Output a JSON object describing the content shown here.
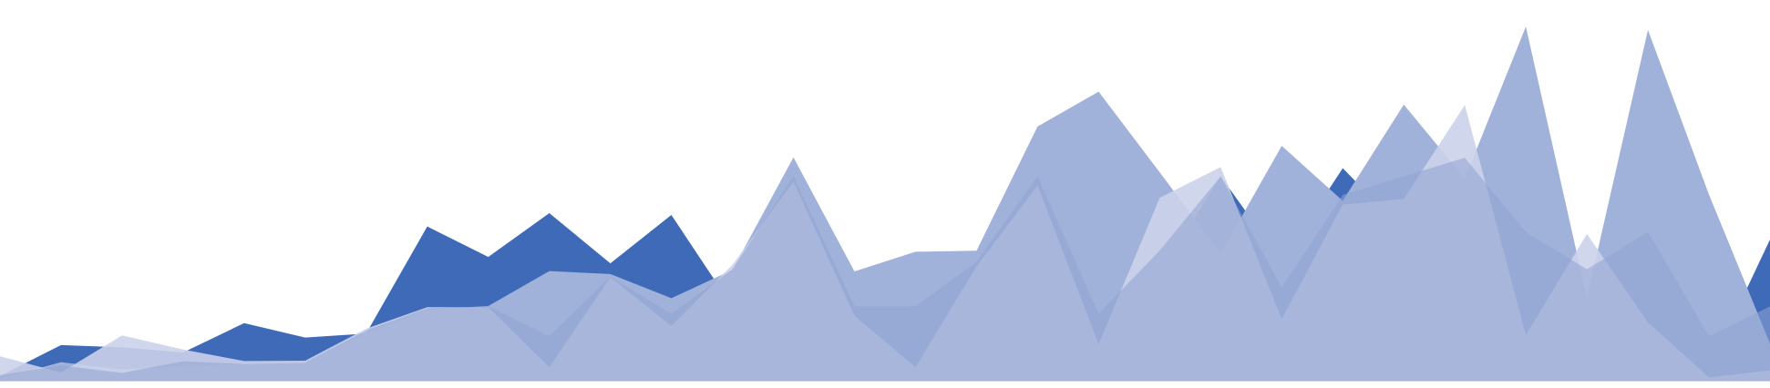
{
  "chart_data": {
    "type": "area",
    "title": "",
    "xlabel": "",
    "ylabel": "",
    "x_count": 30,
    "ylim": [
      0,
      100
    ],
    "grid": false,
    "legend": "none",
    "stacked": false,
    "series": [
      {
        "color": "#3f6ab8",
        "opacity": 1.0,
        "values": [
          1.3,
          9.6,
          9.0,
          7.6,
          15.5,
          11.6,
          12.7,
          41.5,
          33.3,
          45.1,
          31.6,
          44.6,
          19.9,
          32.6,
          5.8,
          22.8,
          27.8,
          54.6,
          20.7,
          28.5,
          55.0,
          32.1,
          57.2,
          40.3,
          12.5,
          32.1,
          11.1,
          22.1,
          3.2,
          38.0
        ]
      },
      {
        "color": "#a0b2da",
        "opacity": 1.0,
        "values": [
          0.5,
          5.0,
          3.0,
          3.8,
          4.6,
          4.9,
          12.7,
          19.1,
          20.1,
          29.5,
          28.7,
          22.2,
          29.8,
          60.1,
          29.4,
          34.7,
          35.0,
          68.4,
          77.8,
          56.1,
          34.2,
          63.2,
          48.4,
          74.3,
          54.4,
          95.3,
          22.3,
          94.4,
          50.1,
          10.0
        ]
      },
      {
        "color": "#cbd2ea",
        "opacity": 0.9,
        "values": [
          6.6,
          2.2,
          12.2,
          8.4,
          5.3,
          5.4,
          14.0,
          19.8,
          19.8,
          3.6,
          27.9,
          14.7,
          31.2,
          53.6,
          17.5,
          3.6,
          30.8,
          52.5,
          9.8,
          49.2,
          57.5,
          16.6,
          47.4,
          48.9,
          74.2,
          12.3,
          39.5,
          15.7,
          0.9,
          2.8
        ]
      },
      {
        "color": "#8fa3d2",
        "opacity": 0.55,
        "values": [
          1.5,
          4.1,
          2.1,
          5.2,
          4.5,
          4.8,
          13.5,
          19.5,
          20.0,
          12.0,
          28.0,
          18.0,
          30.0,
          55.0,
          20.0,
          20.0,
          32.0,
          55.0,
          18.0,
          35.0,
          55.0,
          25.0,
          50.0,
          55.0,
          60.0,
          40.0,
          30.0,
          40.0,
          12.0,
          20.0
        ]
      }
    ]
  }
}
